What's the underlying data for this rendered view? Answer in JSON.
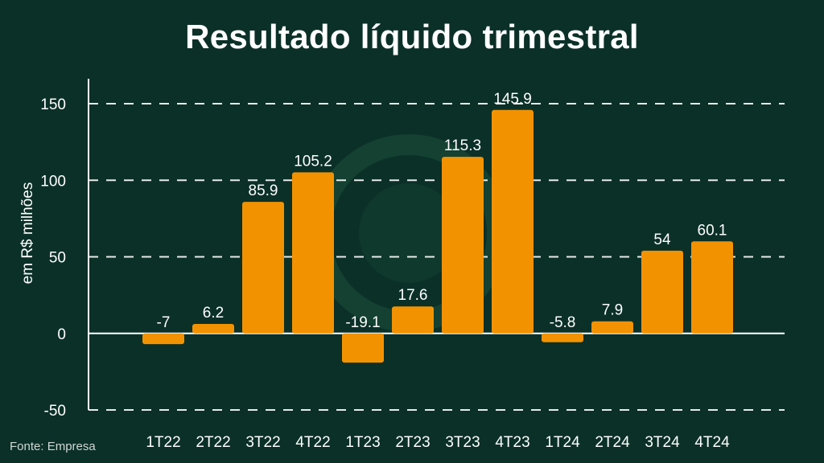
{
  "chart_data": {
    "type": "bar",
    "title": "Resultado líquido trimestral",
    "ylabel": "em R$ milhões",
    "xlabel": "",
    "categories": [
      "1T22",
      "2T22",
      "3T22",
      "4T22",
      "1T23",
      "2T23",
      "3T23",
      "4T23",
      "1T24",
      "2T24",
      "3T24",
      "4T24"
    ],
    "values": [
      -7,
      6.2,
      85.9,
      105.2,
      -19.1,
      17.6,
      115.3,
      145.9,
      -5.8,
      7.9,
      54,
      60.1
    ],
    "value_labels": [
      "-7",
      "6.2",
      "85.9",
      "105.2",
      "-19.1",
      "17.6",
      "115.3",
      "145.9",
      "-5.8",
      "7.9",
      "54",
      "60.1"
    ],
    "ylim": [
      -50,
      150
    ],
    "yticks": [
      -50,
      0,
      50,
      100,
      150
    ],
    "grid": true,
    "legend": "none",
    "bar_color": "#f39200",
    "source": "Fonte: Empresa"
  },
  "colors": {
    "background": "#0b3028",
    "text": "#ffffff",
    "bar": "#f39200",
    "grid": "#ffffff"
  }
}
